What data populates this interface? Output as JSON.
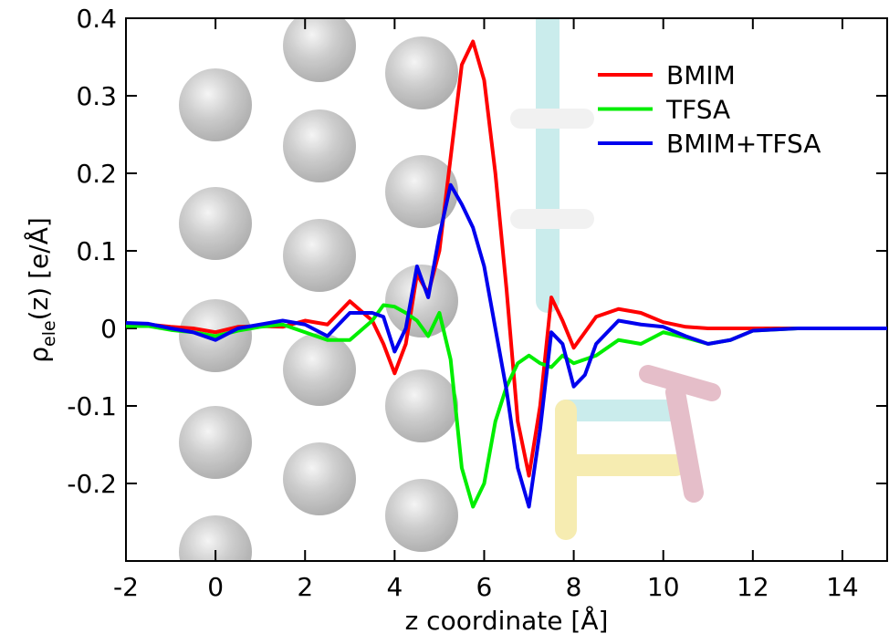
{
  "chart_data": {
    "type": "line",
    "xlabel": "z coordinate [Å]",
    "ylabel": {
      "symbol": "ρ",
      "subscript": "ele",
      "rest": "(z) [e/Å]"
    },
    "x": [
      -2,
      -1.5,
      -1,
      -0.5,
      0,
      0.5,
      1,
      1.5,
      2,
      2.5,
      3,
      3.5,
      3.75,
      4,
      4.25,
      4.5,
      4.75,
      5,
      5.25,
      5.5,
      5.75,
      6,
      6.25,
      6.5,
      6.75,
      7,
      7.25,
      7.5,
      7.75,
      8,
      8.25,
      8.5,
      9,
      9.5,
      10,
      10.5,
      11,
      11.5,
      12,
      13,
      14,
      15
    ],
    "series": [
      {
        "name": "BMIM",
        "color": "#ff0000",
        "values": [
          0.005,
          0.005,
          0.002,
          0,
          -0.005,
          0.002,
          0.003,
          0.002,
          0.01,
          0.005,
          0.035,
          0.01,
          -0.02,
          -0.058,
          -0.02,
          0.07,
          0.045,
          0.1,
          0.22,
          0.34,
          0.37,
          0.32,
          0.2,
          0.05,
          -0.12,
          -0.19,
          -0.1,
          0.04,
          0.01,
          -0.025,
          -0.005,
          0.015,
          0.025,
          0.02,
          0.008,
          0.002,
          0,
          0,
          0,
          0,
          0,
          0
        ]
      },
      {
        "name": "TFSA",
        "color": "#00ee00",
        "values": [
          0.003,
          0.003,
          -0.002,
          -0.005,
          -0.01,
          -0.003,
          0.002,
          0.005,
          -0.005,
          -0.015,
          -0.015,
          0.01,
          0.03,
          0.028,
          0.02,
          0.01,
          -0.01,
          0.02,
          -0.04,
          -0.18,
          -0.23,
          -0.2,
          -0.12,
          -0.075,
          -0.045,
          -0.035,
          -0.045,
          -0.05,
          -0.035,
          -0.045,
          -0.04,
          -0.035,
          -0.015,
          -0.02,
          -0.005,
          -0.012,
          -0.02,
          -0.015,
          -0.003,
          0,
          0,
          0
        ]
      },
      {
        "name": "BMIM+TFSA",
        "color": "#0000ee",
        "values": [
          0.007,
          0.006,
          0,
          -0.005,
          -0.015,
          0,
          0.005,
          0.01,
          0.005,
          -0.01,
          0.02,
          0.02,
          0.015,
          -0.03,
          0,
          0.08,
          0.04,
          0.12,
          0.185,
          0.16,
          0.13,
          0.08,
          0,
          -0.08,
          -0.18,
          -0.23,
          -0.13,
          -0.005,
          -0.02,
          -0.075,
          -0.06,
          -0.02,
          0.01,
          0.005,
          0.002,
          -0.01,
          -0.02,
          -0.015,
          -0.003,
          0,
          0,
          0
        ]
      }
    ],
    "xlim": [
      -2,
      15
    ],
    "ylim": [
      -0.3,
      0.4
    ],
    "xticks": [
      -2,
      0,
      2,
      4,
      6,
      8,
      10,
      12,
      14
    ],
    "yticks": [
      -0.2,
      -0.1,
      0,
      0.1,
      0.2,
      0.3,
      0.4
    ],
    "legend": "upper right"
  }
}
